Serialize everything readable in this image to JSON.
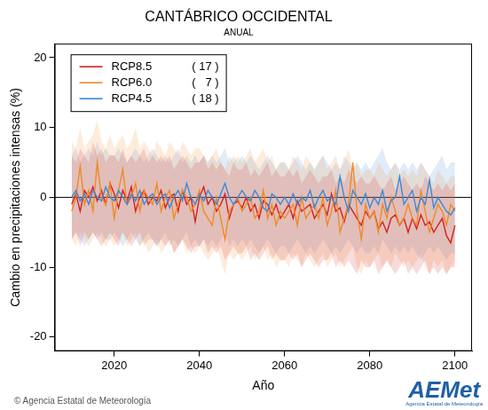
{
  "chart_data": {
    "type": "line",
    "title": "CANTÁBRICO OCCIDENTAL",
    "subtitle": "ANUAL",
    "x_label": "Año",
    "y_label": "Cambio en precipitaciones intensas (%)",
    "annotations": {
      "footer": "© Agencia Estatal de Meteorología",
      "logo": "AEMet",
      "logo_subtitle": "Agencia Estatal de Meteorología"
    },
    "reference_line": 0,
    "legend": "upper left",
    "grid": false,
    "xlim": [
      2006,
      2104
    ],
    "xticks": [
      2020,
      2040,
      2060,
      2080,
      2100
    ],
    "ylim": [
      -22,
      22
    ],
    "yticks": [
      -20,
      -10,
      0,
      10,
      20
    ],
    "x": [
      2010,
      2011,
      2012,
      2013,
      2014,
      2015,
      2016,
      2017,
      2018,
      2019,
      2020,
      2021,
      2022,
      2023,
      2024,
      2025,
      2026,
      2027,
      2028,
      2029,
      2030,
      2031,
      2032,
      2033,
      2034,
      2035,
      2036,
      2037,
      2038,
      2039,
      2040,
      2041,
      2042,
      2043,
      2044,
      2045,
      2046,
      2047,
      2048,
      2049,
      2050,
      2051,
      2052,
      2053,
      2054,
      2055,
      2056,
      2057,
      2058,
      2059,
      2060,
      2061,
      2062,
      2063,
      2064,
      2065,
      2066,
      2067,
      2068,
      2069,
      2070,
      2071,
      2072,
      2073,
      2074,
      2075,
      2076,
      2077,
      2078,
      2079,
      2080,
      2081,
      2082,
      2083,
      2084,
      2085,
      2086,
      2087,
      2088,
      2089,
      2090,
      2091,
      2092,
      2093,
      2094,
      2095,
      2096,
      2097,
      2098,
      2099,
      2100
    ],
    "series": [
      {
        "name": "RCP8.5",
        "count_label": "( 17 )",
        "color": "#d62020",
        "values": [
          -1,
          0.5,
          -2,
          1,
          0,
          1.5,
          -0.5,
          1,
          -1,
          2,
          0.5,
          -1.5,
          1,
          -0.5,
          1.5,
          -2,
          0,
          1,
          -1,
          0,
          -0.5,
          1,
          -1.5,
          0,
          0.5,
          -2,
          1,
          -1,
          0,
          -3.5,
          0,
          1.5,
          -1,
          0,
          -2,
          -1,
          0.5,
          -3,
          -1,
          -0.5,
          -1.5,
          0,
          -2,
          -1,
          -3,
          -0.5,
          -1,
          -2.5,
          -1,
          -3,
          -2,
          -1,
          -3,
          -0.5,
          -2,
          -1.5,
          -1,
          -3,
          -2,
          -1,
          -2.5,
          0.5,
          -2,
          -1.5,
          -3.5,
          -1,
          -2,
          -3,
          -4,
          -2,
          -3,
          -2,
          -4.5,
          -3.5,
          -5,
          -3,
          -2.5,
          -4,
          -3,
          -5,
          -3,
          -4.5,
          -2.5,
          -4,
          -3.5,
          -5,
          -4,
          -3,
          -5.5,
          -6.5,
          -4
        ],
        "upper": [
          6,
          5,
          7,
          6,
          5,
          8,
          6,
          7,
          5,
          6,
          6,
          5,
          7,
          5,
          6,
          5,
          6,
          7,
          5,
          6,
          5,
          6,
          5,
          6,
          4,
          5,
          6,
          5,
          4,
          5,
          5,
          6,
          4,
          5,
          4,
          5,
          4,
          3,
          5,
          4,
          4,
          5,
          3,
          4,
          3,
          4,
          5,
          3,
          4,
          3,
          3,
          4,
          3,
          4,
          2,
          3,
          4,
          3,
          2,
          3,
          3,
          4,
          2,
          3,
          2,
          4,
          3,
          2,
          3,
          2,
          2,
          3,
          2,
          1,
          2,
          3,
          1,
          2,
          3,
          2,
          1,
          2,
          1,
          3,
          2,
          1,
          2,
          1,
          2,
          1,
          2
        ],
        "lower": [
          -6,
          -5,
          -7,
          -5,
          -6,
          -5,
          -6,
          -7,
          -6,
          -5,
          -6,
          -7,
          -5,
          -6,
          -7,
          -6,
          -5,
          -7,
          -6,
          -6,
          -7,
          -6,
          -7,
          -6,
          -8,
          -7,
          -6,
          -7,
          -8,
          -7,
          -7,
          -6,
          -8,
          -7,
          -8,
          -7,
          -9,
          -8,
          -7,
          -8,
          -8,
          -7,
          -9,
          -8,
          -9,
          -8,
          -7,
          -9,
          -8,
          -9,
          -9,
          -8,
          -9,
          -8,
          -10,
          -9,
          -8,
          -9,
          -10,
          -9,
          -9,
          -8,
          -10,
          -9,
          -10,
          -9,
          -10,
          -11,
          -9,
          -10,
          -10,
          -9,
          -11,
          -10,
          -9,
          -10,
          -11,
          -10,
          -9,
          -11,
          -10,
          -11,
          -10,
          -9,
          -11,
          -10,
          -11,
          -10,
          -11,
          -10,
          -10
        ]
      },
      {
        "name": "RCP6.0",
        "count_label": "(   7 )",
        "color": "#f08a24",
        "values": [
          -2,
          0,
          4.5,
          -1,
          1,
          -2,
          5,
          0,
          -1,
          2,
          -3,
          1,
          4,
          -1,
          0,
          2,
          -2,
          1,
          0,
          -1,
          2,
          -2,
          0,
          1,
          -3,
          -1,
          1,
          0,
          -2,
          -1,
          1,
          -2,
          -3,
          -4,
          0,
          -3,
          -6,
          -2,
          -1,
          0,
          -2,
          -1,
          0,
          -3,
          -2,
          1,
          -3,
          -1,
          -4,
          -2,
          -3,
          -2,
          -1,
          -4,
          0,
          -3,
          -2,
          -1,
          -3,
          0,
          -4,
          -2,
          1,
          -5,
          -3,
          -1,
          5,
          -2,
          -6,
          -1,
          -3,
          -2,
          -5,
          -1,
          -3,
          0,
          -2,
          -4,
          -3,
          -1,
          -3,
          -4,
          1,
          -2,
          -5,
          -3,
          -1,
          -2,
          -4,
          -1,
          -2
        ],
        "upper": [
          8,
          7,
          10,
          7,
          8,
          9,
          11,
          8,
          7,
          9,
          7,
          8,
          9,
          7,
          8,
          10,
          7,
          8,
          7,
          6,
          8,
          7,
          6,
          8,
          7,
          6,
          8,
          7,
          6,
          7,
          7,
          6,
          5,
          6,
          7,
          5,
          4,
          6,
          5,
          6,
          5,
          6,
          7,
          5,
          6,
          7,
          5,
          6,
          4,
          5,
          5,
          4,
          6,
          5,
          4,
          6,
          5,
          4,
          5,
          6,
          4,
          5,
          6,
          4,
          5,
          7,
          4,
          5,
          3,
          4,
          4,
          3,
          5,
          4,
          3,
          4,
          5,
          3,
          4,
          3,
          4,
          3,
          5,
          4,
          3,
          2,
          4,
          3,
          2,
          3,
          3
        ],
        "lower": [
          -6,
          -7,
          -5,
          -6,
          -7,
          -6,
          -5,
          -6,
          -7,
          -6,
          -7,
          -6,
          -5,
          -7,
          -6,
          -5,
          -7,
          -6,
          -8,
          -7,
          -6,
          -8,
          -7,
          -6,
          -8,
          -7,
          -6,
          -8,
          -7,
          -8,
          -7,
          -8,
          -9,
          -8,
          -7,
          -9,
          -11,
          -8,
          -9,
          -8,
          -9,
          -8,
          -7,
          -9,
          -8,
          -7,
          -9,
          -8,
          -10,
          -9,
          -9,
          -10,
          -8,
          -9,
          -10,
          -8,
          -9,
          -10,
          -9,
          -8,
          -10,
          -9,
          -8,
          -10,
          -9,
          -8,
          -7,
          -10,
          -11,
          -9,
          -10,
          -9,
          -8,
          -10,
          -9,
          -10,
          -8,
          -9,
          -10,
          -9,
          -10,
          -9,
          -8,
          -10,
          -11,
          -9,
          -10,
          -9,
          -11,
          -10,
          -9
        ]
      },
      {
        "name": "RCP4.5",
        "count_label": "( 18 )",
        "color": "#3c8ad8",
        "values": [
          0,
          1,
          -0.5,
          0.5,
          -1,
          1,
          0,
          -0.5,
          1.5,
          0,
          -0.5,
          1,
          0,
          -1,
          0.5,
          -0.5,
          1,
          -1,
          0,
          0.5,
          -1,
          0,
          0.5,
          -1.5,
          0,
          1,
          -0.5,
          2,
          0,
          -1,
          0.5,
          -0.5,
          1,
          0,
          -1,
          0.5,
          2,
          0,
          -1,
          0,
          1,
          0,
          -0.5,
          1,
          0,
          -1.5,
          -2,
          0.5,
          0,
          -1,
          0,
          -1,
          0.5,
          -1,
          0,
          -0.5,
          1,
          -1.5,
          0,
          1,
          -0.5,
          0,
          -1,
          3,
          0,
          -2,
          1,
          0,
          -1,
          0.5,
          -1.5,
          0,
          -1,
          1,
          -2,
          -0.5,
          0,
          3,
          -1,
          0,
          1,
          -2,
          0,
          -1,
          2.5,
          -1.5,
          0,
          -1,
          -2,
          -2.5,
          -1.5
        ],
        "upper": [
          6,
          7,
          5,
          6,
          7,
          6,
          8,
          6,
          7,
          6,
          6,
          7,
          6,
          5,
          6,
          7,
          6,
          5,
          6,
          7,
          6,
          5,
          6,
          5,
          6,
          7,
          5,
          6,
          5,
          6,
          5,
          6,
          5,
          6,
          5,
          6,
          7,
          5,
          6,
          5,
          6,
          5,
          6,
          5,
          4,
          5,
          6,
          5,
          4,
          5,
          5,
          4,
          5,
          6,
          5,
          4,
          5,
          4,
          5,
          6,
          5,
          4,
          5,
          4,
          6,
          5,
          4,
          5,
          4,
          5,
          4,
          5,
          6,
          7,
          5,
          4,
          5,
          4,
          5,
          4,
          5,
          4,
          5,
          4,
          3,
          4,
          5,
          6,
          4,
          5,
          5
        ],
        "lower": [
          -6,
          -5,
          -6,
          -7,
          -6,
          -5,
          -6,
          -5,
          -6,
          -6,
          -5,
          -6,
          -7,
          -6,
          -5,
          -6,
          -7,
          -6,
          -5,
          -6,
          -7,
          -6,
          -5,
          -7,
          -6,
          -7,
          -6,
          -5,
          -7,
          -6,
          -7,
          -6,
          -7,
          -6,
          -7,
          -6,
          -5,
          -7,
          -6,
          -7,
          -6,
          -7,
          -6,
          -7,
          -8,
          -7,
          -6,
          -7,
          -8,
          -7,
          -7,
          -8,
          -7,
          -6,
          -7,
          -8,
          -7,
          -8,
          -7,
          -6,
          -7,
          -8,
          -7,
          -8,
          -7,
          -6,
          -7,
          -8,
          -7,
          -8,
          -8,
          -7,
          -8,
          -6,
          -7,
          -8,
          -7,
          -8,
          -7,
          -8,
          -7,
          -8,
          -9,
          -8,
          -7,
          -8,
          -7,
          -8,
          -9,
          -8,
          -8
        ]
      }
    ]
  }
}
